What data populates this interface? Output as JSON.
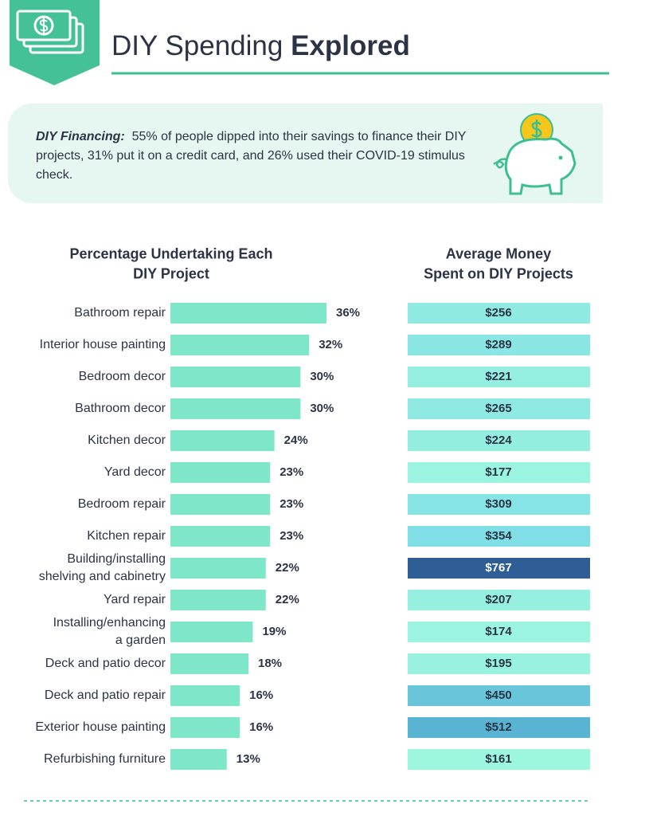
{
  "header": {
    "title_light": "DIY Spending",
    "title_bold": "Explored"
  },
  "callout": {
    "label": "DIY Financing:",
    "text": "55% of people dipped into their savings to finance their DIY projects, 31% put it on a credit card, and 26% used their COVID-19 stimulus check."
  },
  "chart_data": [
    {
      "type": "bar",
      "orientation": "horizontal",
      "title": "Percentage Undertaking Each\nDIY Project",
      "categories": [
        "Bathroom repair",
        "Interior house painting",
        "Bedroom decor",
        "Bathroom decor",
        "Kitchen decor",
        "Yard decor",
        "Bedroom repair",
        "Kitchen repair",
        "Building/installing\nshelving and cabinetry",
        "Yard repair",
        "Installing/enhancing\na garden",
        "Deck and patio decor",
        "Deck and patio repair",
        "Exterior house painting",
        "Refurbishing furniture"
      ],
      "values": [
        36,
        32,
        30,
        30,
        24,
        23,
        23,
        23,
        22,
        22,
        19,
        18,
        16,
        16,
        13
      ],
      "value_labels": [
        "36%",
        "32%",
        "30%",
        "30%",
        "24%",
        "23%",
        "23%",
        "23%",
        "22%",
        "22%",
        "19%",
        "18%",
        "16%",
        "16%",
        "13%"
      ],
      "color": "#7ee7c9"
    },
    {
      "type": "heatmap",
      "title": "Average Money\nSpent on DIY Projects",
      "values": [
        256,
        289,
        221,
        265,
        224,
        177,
        309,
        354,
        767,
        207,
        174,
        195,
        450,
        512,
        161
      ],
      "value_labels": [
        "$256",
        "$289",
        "$221",
        "$265",
        "$224",
        "$177",
        "$309",
        "$354",
        "$767",
        "$207",
        "$174",
        "$195",
        "$450",
        "$512",
        "$161"
      ],
      "colors": [
        "#9df6de",
        "#7fdde6",
        "#4aa6cb",
        "#2f5d96"
      ]
    }
  ]
}
